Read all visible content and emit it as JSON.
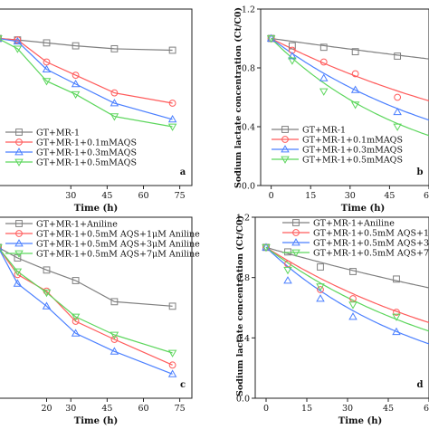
{
  "chart_data": [
    {
      "type": "line",
      "panel_label": "a",
      "xlabel": "Time (h)",
      "ylabel": "",
      "xlim": [
        0,
        80
      ],
      "ylim": [
        0,
        1.2
      ],
      "xticks": [
        "30",
        "45",
        "60",
        "75"
      ],
      "yticks": [],
      "x": [
        0,
        8,
        20,
        32,
        48,
        72
      ],
      "legend_position": "lower-left",
      "series": [
        {
          "name": "GT+MR-1",
          "color": "#7f7f7f",
          "marker": "square",
          "values": [
            1.0,
            0.99,
            0.97,
            0.95,
            0.93,
            0.92
          ]
        },
        {
          "name": "GT+MR-1+0.1mMAQS",
          "color": "#ff5b5b",
          "marker": "circle",
          "values": [
            1.0,
            0.99,
            0.84,
            0.75,
            0.63,
            0.56
          ]
        },
        {
          "name": "GT+MR-1+0.3mMAQS",
          "color": "#4a7fff",
          "marker": "triangle-up",
          "values": [
            1.0,
            0.98,
            0.79,
            0.69,
            0.56,
            0.45
          ]
        },
        {
          "name": "GT+MR-1+0.5mMAQS",
          "color": "#5cd65c",
          "marker": "triangle-down",
          "values": [
            1.0,
            0.93,
            0.71,
            0.62,
            0.47,
            0.4
          ]
        }
      ]
    },
    {
      "type": "line",
      "panel_label": "b",
      "xlabel": "Time (h)",
      "ylabel": "Sodium lactate concentration (Ct/C0)",
      "xlim": [
        -4,
        60
      ],
      "ylim": [
        0,
        1.2
      ],
      "xticks": [
        "0",
        "15",
        "30",
        "45",
        "60"
      ],
      "yticks": [
        "0.0",
        "0.4",
        "0.8",
        "1.2"
      ],
      "x": [
        0,
        8,
        20,
        32,
        48
      ],
      "legend_position": "lower-left",
      "series": [
        {
          "name": "GT+MR-1",
          "color": "#7f7f7f",
          "marker": "square",
          "values": [
            1.0,
            0.95,
            0.94,
            0.91,
            0.88
          ]
        },
        {
          "name": "GT+MR-1+0.1mMAQS",
          "color": "#ff5b5b",
          "marker": "circle",
          "values": [
            1.0,
            0.92,
            0.84,
            0.76,
            0.6
          ]
        },
        {
          "name": "GT+MR-1+0.3mMAQS",
          "color": "#4a7fff",
          "marker": "triangle-up",
          "values": [
            1.0,
            0.88,
            0.73,
            0.65,
            0.5
          ]
        },
        {
          "name": "GT+MR-1+0.5mMAQS",
          "color": "#5cd65c",
          "marker": "triangle-down",
          "values": [
            1.0,
            0.85,
            0.64,
            0.55,
            0.4
          ]
        }
      ],
      "fit_curves": [
        {
          "color": "#7f7f7f",
          "rate": 0.0025
        },
        {
          "color": "#ff5b5b",
          "rate": 0.0092
        },
        {
          "color": "#4a7fff",
          "rate": 0.0135
        },
        {
          "color": "#5cd65c",
          "rate": 0.018
        }
      ]
    },
    {
      "type": "line",
      "panel_label": "c",
      "xlabel": "Time (h)",
      "ylabel": "",
      "xlim": [
        0,
        80
      ],
      "ylim": [
        0,
        1.2
      ],
      "xticks": [
        "20",
        "30",
        "45",
        "60",
        "75"
      ],
      "yticks": [],
      "x": [
        0,
        8,
        20,
        32,
        48,
        72
      ],
      "legend_position": "top-left",
      "series": [
        {
          "name": "GT+MR-1+Aniline",
          "color": "#7f7f7f",
          "marker": "square",
          "values": [
            1.0,
            0.93,
            0.85,
            0.78,
            0.64,
            0.61
          ]
        },
        {
          "name": "GT+MR-1+0.5mM AQS+1μM Aniline",
          "color": "#ff5b5b",
          "marker": "circle",
          "values": [
            1.0,
            0.82,
            0.71,
            0.51,
            0.39,
            0.22
          ]
        },
        {
          "name": "GT+MR-1+0.5mM AQS+3μM Aniline",
          "color": "#4a7fff",
          "marker": "triangle-up",
          "values": [
            1.0,
            0.76,
            0.61,
            0.43,
            0.31,
            0.16
          ]
        },
        {
          "name": "GT+MR-1+0.5mM AQS+7μM Aniline",
          "color": "#5cd65c",
          "marker": "triangle-down",
          "values": [
            1.0,
            0.84,
            0.7,
            0.54,
            0.42,
            0.3
          ]
        }
      ]
    },
    {
      "type": "line",
      "panel_label": "d",
      "xlabel": "Time (h)",
      "ylabel": "Sodium lactate concentration (Ct/C0)",
      "xlim": [
        -4,
        60
      ],
      "ylim": [
        0,
        1.2
      ],
      "xticks": [
        "0",
        "15",
        "30",
        "45",
        "60"
      ],
      "yticks": [
        "0.0",
        "0.4",
        "0.8",
        "1.2"
      ],
      "x": [
        0,
        8,
        20,
        32,
        48
      ],
      "legend_position": "top-right",
      "series": [
        {
          "name": "GT+MR-1+Aniline",
          "color": "#7f7f7f",
          "marker": "square",
          "values": [
            1.0,
            0.97,
            0.87,
            0.84,
            0.79
          ]
        },
        {
          "name": "GT+MR-1+0.5mM AQS+1μM Aniline",
          "color": "#ff5b5b",
          "marker": "circle",
          "values": [
            1.0,
            0.89,
            0.72,
            0.66,
            0.57
          ]
        },
        {
          "name": "GT+MR-1+0.5mM AQS+3μM Aniline",
          "color": "#4a7fff",
          "marker": "triangle-up",
          "values": [
            1.0,
            0.78,
            0.66,
            0.54,
            0.44
          ]
        },
        {
          "name": "GT+MR-1+0.5mM AQS+7μM Aniline",
          "color": "#5cd65c",
          "marker": "triangle-down",
          "values": [
            1.0,
            0.85,
            0.74,
            0.62,
            0.54
          ]
        }
      ],
      "fit_curves": [
        {
          "color": "#7f7f7f",
          "rate": 0.0052
        },
        {
          "color": "#ff5b5b",
          "rate": 0.0115
        },
        {
          "color": "#4a7fff",
          "rate": 0.017
        },
        {
          "color": "#5cd65c",
          "rate": 0.0135
        }
      ]
    }
  ]
}
